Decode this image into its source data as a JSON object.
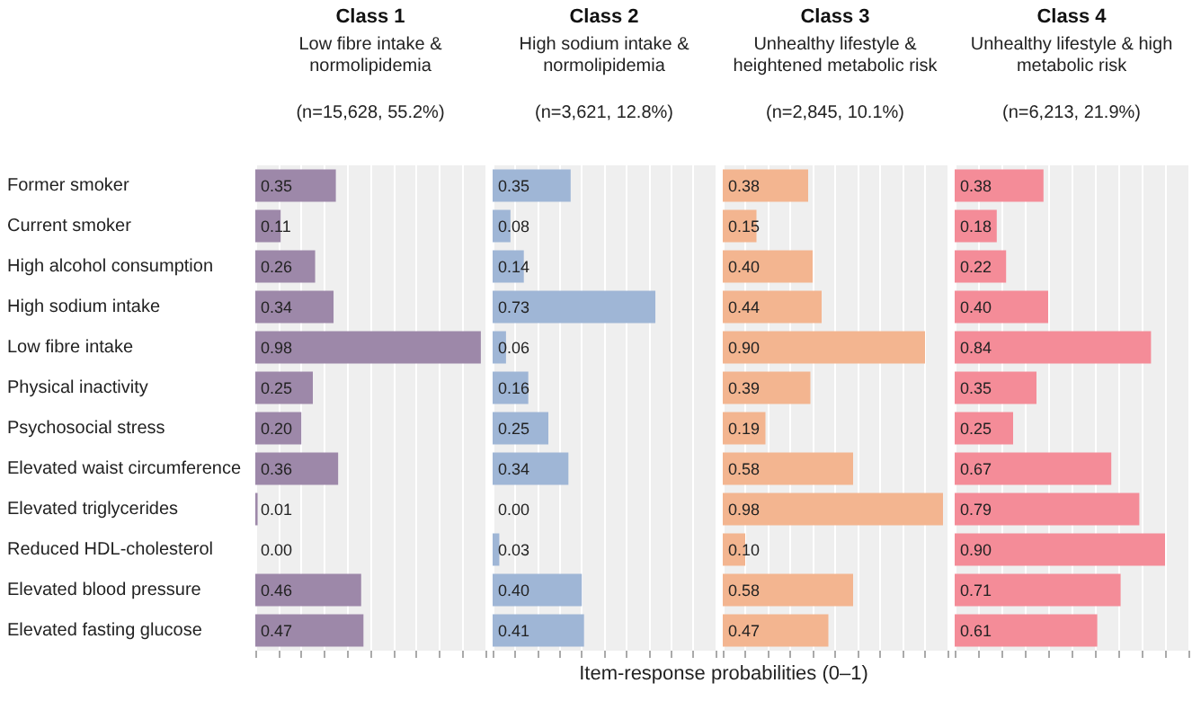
{
  "chart_data": [
    {
      "type": "bar",
      "orientation": "horizontal",
      "title": "Class 1",
      "subtitle": "Low fibre intake &\nnormolipidemia",
      "annotations": [
        "(n=15,628, 55.2%)"
      ],
      "xlabel": "Item-response probabilities (0–1)",
      "categories": [
        "Former smoker",
        "Current smoker",
        "High alcohol consumption",
        "High sodium intake",
        "Low fibre intake",
        "Physical inactivity",
        "Psychosocial stress",
        "Elevated waist circumference",
        "Elevated triglycerides",
        "Reduced HDL-cholesterol",
        "Elevated blood pressure",
        "Elevated fasting glucose"
      ],
      "series": [
        {
          "color": "#9d88a9",
          "values": [
            0.35,
            0.11,
            0.26,
            0.34,
            0.98,
            0.25,
            0.2,
            0.36,
            0.01,
            0.0,
            0.46,
            0.47
          ],
          "value_labels": [
            "0.35",
            "0.11",
            "0.26",
            "0.34",
            "0.98",
            "0.25",
            "0.20",
            "0.36",
            "0.01",
            "0.00",
            "0.46",
            "0.47"
          ]
        }
      ],
      "xlim": [
        0,
        1
      ],
      "xticks": [
        {
          "value": 0,
          "label": null
        },
        {
          "value": 0.1,
          "label": null
        },
        {
          "value": 0.2,
          "label": null
        },
        {
          "value": 0.3,
          "label": null
        },
        {
          "value": 0.4,
          "label": null
        },
        {
          "value": 0.5,
          "label": null
        },
        {
          "value": 0.6,
          "label": null
        },
        {
          "value": 0.7,
          "label": null
        },
        {
          "value": 0.8,
          "label": null
        },
        {
          "value": 0.9,
          "label": null
        },
        {
          "value": 1,
          "label": null
        }
      ],
      "grid": "x",
      "tick_labels": "y"
    },
    {
      "type": "bar",
      "orientation": "horizontal",
      "title": "Class 2",
      "subtitle": "High sodium intake &\nnormolipidemia",
      "annotations": [
        "(n=3,621, 12.8%)"
      ],
      "categories": [
        null,
        null,
        null,
        null,
        null,
        null,
        null,
        null,
        null,
        null,
        null,
        null
      ],
      "series": [
        {
          "color": "#9fb6d6",
          "values": [
            0.35,
            0.08,
            0.14,
            0.73,
            0.06,
            0.16,
            0.25,
            0.34,
            0.0,
            0.03,
            0.4,
            0.41
          ],
          "value_labels": [
            "0.35",
            "0.08",
            "0.14",
            "0.73",
            "0.06",
            "0.16",
            "0.25",
            "0.34",
            "0.00",
            "0.03",
            "0.40",
            "0.41"
          ]
        }
      ],
      "xlim": [
        0,
        1
      ],
      "xticks": [
        {
          "value": 0,
          "label": null
        },
        {
          "value": 0.1,
          "label": null
        },
        {
          "value": 0.2,
          "label": null
        },
        {
          "value": 0.3,
          "label": null
        },
        {
          "value": 0.4,
          "label": null
        },
        {
          "value": 0.5,
          "label": null
        },
        {
          "value": 0.6,
          "label": null
        },
        {
          "value": 0.7,
          "label": null
        },
        {
          "value": 0.8,
          "label": null
        },
        {
          "value": 0.9,
          "label": null
        },
        {
          "value": 1,
          "label": null
        }
      ],
      "grid": "x",
      "tick_labels": false
    },
    {
      "type": "bar",
      "orientation": "horizontal",
      "title": "Class 3",
      "subtitle": "Unhealthy lifestyle &\nheightened metabolic risk",
      "annotations": [
        "(n=2,845, 10.1%)"
      ],
      "categories": [
        null,
        null,
        null,
        null,
        null,
        null,
        null,
        null,
        null,
        null,
        null,
        null
      ],
      "series": [
        {
          "color": "#f3b590",
          "values": [
            0.38,
            0.15,
            0.4,
            0.44,
            0.9,
            0.39,
            0.19,
            0.58,
            0.98,
            0.1,
            0.58,
            0.47
          ],
          "value_labels": [
            "0.38",
            "0.15",
            "0.40",
            "0.44",
            "0.90",
            "0.39",
            "0.19",
            "0.58",
            "0.98",
            "0.10",
            "0.58",
            "0.47"
          ]
        }
      ],
      "xlim": [
        0,
        1
      ],
      "xticks": [
        {
          "value": 0,
          "label": null
        },
        {
          "value": 0.1,
          "label": null
        },
        {
          "value": 0.2,
          "label": null
        },
        {
          "value": 0.3,
          "label": null
        },
        {
          "value": 0.4,
          "label": null
        },
        {
          "value": 0.5,
          "label": null
        },
        {
          "value": 0.6,
          "label": null
        },
        {
          "value": 0.7,
          "label": null
        },
        {
          "value": 0.8,
          "label": null
        },
        {
          "value": 0.9,
          "label": null
        },
        {
          "value": 1,
          "label": null
        }
      ],
      "grid": "x",
      "tick_labels": false
    },
    {
      "type": "bar",
      "orientation": "horizontal",
      "title": "Class 4",
      "subtitle": "Unhealthy lifestyle & high\nmetabolic risk",
      "annotations": [
        "(n=6,213, 21.9%)"
      ],
      "categories": [
        null,
        null,
        null,
        null,
        null,
        null,
        null,
        null,
        null,
        null,
        null,
        null
      ],
      "series": [
        {
          "color": "#f48c98",
          "values": [
            0.38,
            0.18,
            0.22,
            0.4,
            0.84,
            0.35,
            0.25,
            0.67,
            0.79,
            0.9,
            0.71,
            0.61
          ],
          "value_labels": [
            "0.38",
            "0.18",
            "0.22",
            "0.40",
            "0.84",
            "0.35",
            "0.25",
            "0.67",
            "0.79",
            "0.90",
            "0.71",
            "0.61"
          ]
        }
      ],
      "xlim": [
        0,
        1
      ],
      "xticks": [
        {
          "value": 0,
          "label": null
        },
        {
          "value": 0.1,
          "label": null
        },
        {
          "value": 0.2,
          "label": null
        },
        {
          "value": 0.3,
          "label": null
        },
        {
          "value": 0.4,
          "label": null
        },
        {
          "value": 0.5,
          "label": null
        },
        {
          "value": 0.6,
          "label": null
        },
        {
          "value": 0.7,
          "label": null
        },
        {
          "value": 0.8,
          "label": null
        },
        {
          "value": 0.9,
          "label": null
        },
        {
          "value": 1,
          "label": null
        }
      ],
      "grid": "x",
      "tick_labels": false
    }
  ]
}
